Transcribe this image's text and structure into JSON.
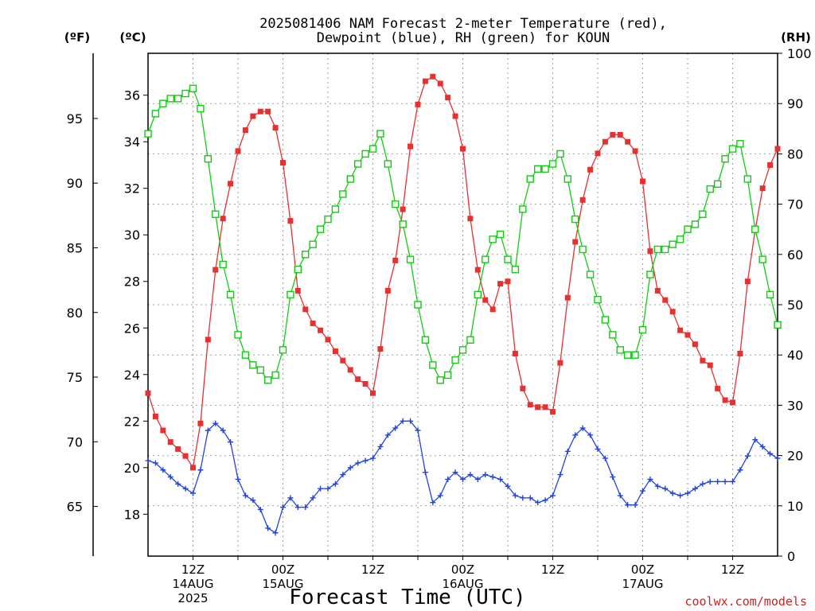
{
  "title_line1": "2025081406 NAM Forecast 2-meter Temperature (red),",
  "title_line2": "Dewpoint (blue), RH (green) for KOUN",
  "unit_f": "(ºF)",
  "unit_c": "(ºC)",
  "unit_rh": "(RH)",
  "x_title": "Forecast Time (UTC)",
  "credit": "coolwx.com/models",
  "colors": {
    "temperature": "#e83030",
    "dewpoint": "#2244dd",
    "rh": "#11cc11"
  },
  "chart_data": {
    "type": "line",
    "title": "2025081406 NAM Forecast 2-meter Temperature (red), Dewpoint (blue), RH (green) for KOUN",
    "xlabel": "Forecast Time (UTC)",
    "x_hours_from_2025-08-14T06Z": [
      0,
      1,
      2,
      3,
      4,
      5,
      6,
      7,
      8,
      9,
      10,
      11,
      12,
      13,
      14,
      15,
      16,
      17,
      18,
      19,
      20,
      21,
      22,
      23,
      24,
      25,
      26,
      27,
      28,
      29,
      30,
      31,
      32,
      33,
      34,
      35,
      36,
      37,
      38,
      39,
      40,
      41,
      42,
      43,
      44,
      45,
      46,
      47,
      48,
      49,
      50,
      51,
      52,
      53,
      54,
      55,
      56,
      57,
      58,
      59,
      60,
      61,
      62,
      63,
      64,
      65,
      66,
      67,
      68,
      69,
      70,
      71,
      72,
      73,
      74,
      75,
      76,
      77,
      78,
      79,
      80,
      81,
      82,
      83,
      84
    ],
    "x_tick_labels": [
      {
        "hour": 6,
        "lines": [
          "12Z",
          "14AUG",
          "2025"
        ]
      },
      {
        "hour": 18,
        "lines": [
          "00Z",
          "15AUG"
        ]
      },
      {
        "hour": 30,
        "lines": [
          "12Z"
        ]
      },
      {
        "hour": 42,
        "lines": [
          "00Z",
          "16AUG"
        ]
      },
      {
        "hour": 54,
        "lines": [
          "12Z"
        ]
      },
      {
        "hour": 66,
        "lines": [
          "00Z",
          "17AUG"
        ]
      },
      {
        "hour": 78,
        "lines": [
          "12Z"
        ]
      }
    ],
    "y_left_celsius": {
      "range": [
        16.2,
        37.8
      ],
      "ticks": [
        18,
        20,
        22,
        24,
        26,
        28,
        30,
        32,
        34,
        36
      ]
    },
    "y_far_left_fahrenheit": {
      "ticks": [
        65,
        70,
        75,
        80,
        85,
        90,
        95
      ]
    },
    "y_right_rh": {
      "range": [
        0,
        100
      ],
      "ticks": [
        0,
        10,
        20,
        30,
        40,
        50,
        60,
        70,
        80,
        90,
        100
      ]
    },
    "grid": true,
    "series": [
      {
        "name": "Temperature",
        "axis": "celsius",
        "marker": "filled-square",
        "values": [
          23.2,
          22.2,
          21.6,
          21.1,
          20.8,
          20.5,
          20.0,
          21.9,
          25.5,
          28.5,
          30.7,
          32.2,
          33.6,
          34.5,
          35.1,
          35.3,
          35.3,
          34.6,
          33.1,
          30.6,
          27.6,
          26.8,
          26.2,
          25.9,
          25.5,
          25.0,
          24.6,
          24.2,
          23.8,
          23.6,
          23.2,
          25.1,
          27.6,
          28.9,
          31.1,
          33.8,
          35.6,
          36.6,
          36.8,
          36.5,
          35.9,
          35.1,
          33.7,
          30.7,
          28.5,
          27.2,
          26.8,
          27.9,
          28.0,
          24.9,
          23.4,
          22.7,
          22.6,
          22.6,
          22.4,
          24.5,
          27.3,
          29.7,
          31.5,
          32.8,
          33.5,
          34.0,
          34.3,
          34.3,
          34.0,
          33.6,
          32.3,
          29.3,
          27.6,
          27.2,
          26.7,
          25.9,
          25.7,
          25.3,
          24.6,
          24.4,
          23.4,
          22.9,
          22.8,
          24.9,
          28.0,
          30.2,
          32.0,
          33.0,
          33.7
        ]
      },
      {
        "name": "Dewpoint",
        "axis": "celsius",
        "marker": "plus",
        "values": [
          20.3,
          20.2,
          19.9,
          19.6,
          19.3,
          19.1,
          18.9,
          19.9,
          21.6,
          21.9,
          21.6,
          21.1,
          19.5,
          18.8,
          18.6,
          18.2,
          17.4,
          17.2,
          18.3,
          18.7,
          18.3,
          18.3,
          18.7,
          19.1,
          19.1,
          19.3,
          19.7,
          20.0,
          20.2,
          20.3,
          20.4,
          20.9,
          21.4,
          21.7,
          22.0,
          22.0,
          21.6,
          19.8,
          18.5,
          18.8,
          19.5,
          19.8,
          19.5,
          19.7,
          19.5,
          19.7,
          19.6,
          19.5,
          19.2,
          18.8,
          18.7,
          18.7,
          18.5,
          18.6,
          18.8,
          19.7,
          20.7,
          21.4,
          21.7,
          21.4,
          20.8,
          20.4,
          19.6,
          18.8,
          18.4,
          18.4,
          19.0,
          19.5,
          19.2,
          19.1,
          18.9,
          18.8,
          18.9,
          19.1,
          19.3,
          19.4,
          19.4,
          19.4,
          19.4,
          19.9,
          20.5,
          21.2,
          20.9,
          20.6,
          20.4
        ]
      },
      {
        "name": "RH",
        "axis": "rh",
        "marker": "open-square",
        "values": [
          84,
          88,
          90,
          91,
          91,
          92,
          93,
          89,
          79,
          68,
          58,
          52,
          44,
          40,
          38,
          37,
          35,
          36,
          41,
          52,
          57,
          60,
          62,
          65,
          67,
          69,
          72,
          75,
          78,
          80,
          81,
          84,
          78,
          70,
          66,
          59,
          50,
          43,
          38,
          35,
          36,
          39,
          41,
          43,
          52,
          59,
          63,
          64,
          59,
          57,
          69,
          75,
          77,
          77,
          78,
          80,
          75,
          67,
          61,
          56,
          51,
          47,
          44,
          41,
          40,
          40,
          45,
          56,
          61,
          61,
          62,
          63,
          65,
          66,
          68,
          73,
          74,
          79,
          81,
          82,
          75,
          65,
          59,
          52,
          46
        ]
      }
    ]
  }
}
